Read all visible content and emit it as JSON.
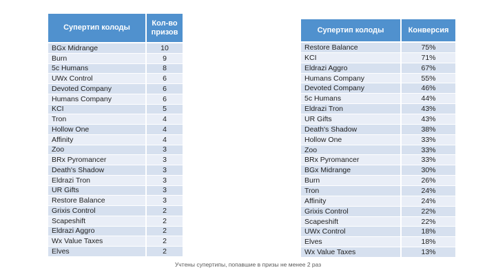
{
  "colors": {
    "header_bg": "#5091CE",
    "header_text": "#FFFFFF",
    "row_odd": "#D6E0EF",
    "row_even": "#E9EEF7",
    "cell_text": "#212121",
    "footer_text": "#595959"
  },
  "footer": {
    "note": "Учтены супертипы, попавшие в призы не менее 2 раз"
  },
  "chart_data": [
    {
      "type": "table",
      "name": "prize-counts",
      "columns": [
        "Супертип колоды",
        "Кол-во призов"
      ],
      "rows": [
        [
          "BGx Midrange",
          "10"
        ],
        [
          "Burn",
          "9"
        ],
        [
          "5c Humans",
          "8"
        ],
        [
          "UWx Control",
          "6"
        ],
        [
          "Devoted Company",
          "6"
        ],
        [
          "Humans Company",
          "6"
        ],
        [
          "KCI",
          "5"
        ],
        [
          "Tron",
          "4"
        ],
        [
          "Hollow One",
          "4"
        ],
        [
          "Affinity",
          "4"
        ],
        [
          "Zoo",
          "3"
        ],
        [
          "BRx Pyromancer",
          "3"
        ],
        [
          "Death's Shadow",
          "3"
        ],
        [
          "Eldrazi Tron",
          "3"
        ],
        [
          "UR Gifts",
          "3"
        ],
        [
          "Restore Balance",
          "3"
        ],
        [
          "Grixis Control",
          "2"
        ],
        [
          "Scapeshift",
          "2"
        ],
        [
          "Eldrazi Aggro",
          "2"
        ],
        [
          "Wx Value Taxes",
          "2"
        ],
        [
          "Elves",
          "2"
        ]
      ]
    },
    {
      "type": "table",
      "name": "conversion-rates",
      "columns": [
        "Супертип колоды",
        "Конверсия"
      ],
      "rows": [
        [
          "Restore Balance",
          "75%"
        ],
        [
          "KCI",
          "71%"
        ],
        [
          "Eldrazi Aggro",
          "67%"
        ],
        [
          "Humans Company",
          "55%"
        ],
        [
          "Devoted Company",
          "46%"
        ],
        [
          "5c Humans",
          "44%"
        ],
        [
          "Eldrazi Tron",
          "43%"
        ],
        [
          "UR Gifts",
          "43%"
        ],
        [
          "Death's Shadow",
          "38%"
        ],
        [
          "Hollow One",
          "33%"
        ],
        [
          "Zoo",
          "33%"
        ],
        [
          "BRx Pyromancer",
          "33%"
        ],
        [
          "BGx Midrange",
          "30%"
        ],
        [
          "Burn",
          "26%"
        ],
        [
          "Tron",
          "24%"
        ],
        [
          "Affinity",
          "24%"
        ],
        [
          "Grixis Control",
          "22%"
        ],
        [
          "Scapeshift",
          "22%"
        ],
        [
          "UWx Control",
          "18%"
        ],
        [
          "Elves",
          "18%"
        ],
        [
          "Wx Value Taxes",
          "13%"
        ]
      ]
    }
  ]
}
